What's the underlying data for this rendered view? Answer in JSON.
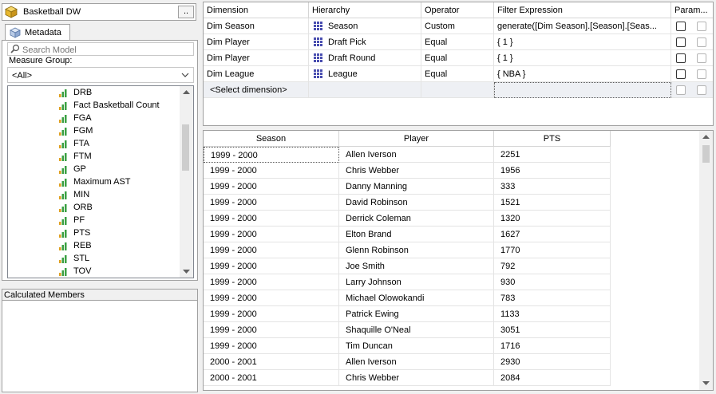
{
  "cube": {
    "name": "Basketball DW",
    "browse_label": "..",
    "icon": "cube-icon"
  },
  "metadata_tab": {
    "label": "Metadata",
    "icon": "metadata-cube-icon"
  },
  "search": {
    "placeholder": "Search Model",
    "icon": "search-icon"
  },
  "measure_group": {
    "label": "Measure Group:",
    "value": "<All>"
  },
  "measures": [
    "DRB",
    "Fact Basketball Count",
    "FGA",
    "FGM",
    "FTA",
    "FTM",
    "GP",
    "Maximum AST",
    "MIN",
    "ORB",
    "PF",
    "PTS",
    "REB",
    "STL",
    "TOV"
  ],
  "calculated_members": {
    "title": "Calculated Members"
  },
  "filter_grid": {
    "columns": [
      "Dimension",
      "Hierarchy",
      "Operator",
      "Filter Expression",
      "Param..."
    ],
    "rows": [
      {
        "dimension": "Dim Season",
        "hierarchy": "Season",
        "operator": "Custom",
        "expression": "generate([Dim Season].[Season].[Seas..."
      },
      {
        "dimension": "Dim Player",
        "hierarchy": "Draft Pick",
        "operator": "Equal",
        "expression": "{ 1 }"
      },
      {
        "dimension": "Dim Player",
        "hierarchy": "Draft Round",
        "operator": "Equal",
        "expression": "{ 1 }"
      },
      {
        "dimension": "Dim League",
        "hierarchy": "League",
        "operator": "Equal",
        "expression": "{ NBA }"
      }
    ],
    "new_row_label": "<Select dimension>"
  },
  "results_grid": {
    "columns": [
      "Season",
      "Player",
      "PTS"
    ],
    "rows": [
      {
        "season": "1999 - 2000",
        "player": "Allen Iverson",
        "pts": "2251"
      },
      {
        "season": "1999 - 2000",
        "player": "Chris Webber",
        "pts": "1956"
      },
      {
        "season": "1999 - 2000",
        "player": "Danny Manning",
        "pts": "333"
      },
      {
        "season": "1999 - 2000",
        "player": "David Robinson",
        "pts": "1521"
      },
      {
        "season": "1999 - 2000",
        "player": "Derrick Coleman",
        "pts": "1320"
      },
      {
        "season": "1999 - 2000",
        "player": "Elton Brand",
        "pts": "1627"
      },
      {
        "season": "1999 - 2000",
        "player": "Glenn Robinson",
        "pts": "1770"
      },
      {
        "season": "1999 - 2000",
        "player": "Joe Smith",
        "pts": "792"
      },
      {
        "season": "1999 - 2000",
        "player": "Larry Johnson",
        "pts": "930"
      },
      {
        "season": "1999 - 2000",
        "player": "Michael Olowokandi",
        "pts": "783"
      },
      {
        "season": "1999 - 2000",
        "player": "Patrick Ewing",
        "pts": "1133"
      },
      {
        "season": "1999 - 2000",
        "player": "Shaquille O'Neal",
        "pts": "3051"
      },
      {
        "season": "1999 - 2000",
        "player": "Tim Duncan",
        "pts": "1716"
      },
      {
        "season": "2000 - 2001",
        "player": "Allen Iverson",
        "pts": "2930"
      },
      {
        "season": "2000 - 2001",
        "player": "Chris Webber",
        "pts": "2084"
      }
    ]
  },
  "colors": {
    "hierarchy_icon": "#4a4fb0",
    "measure_bar_green": "#3aa043",
    "measure_bar_orange": "#e0a020",
    "cube_gold": "#e8b830"
  }
}
